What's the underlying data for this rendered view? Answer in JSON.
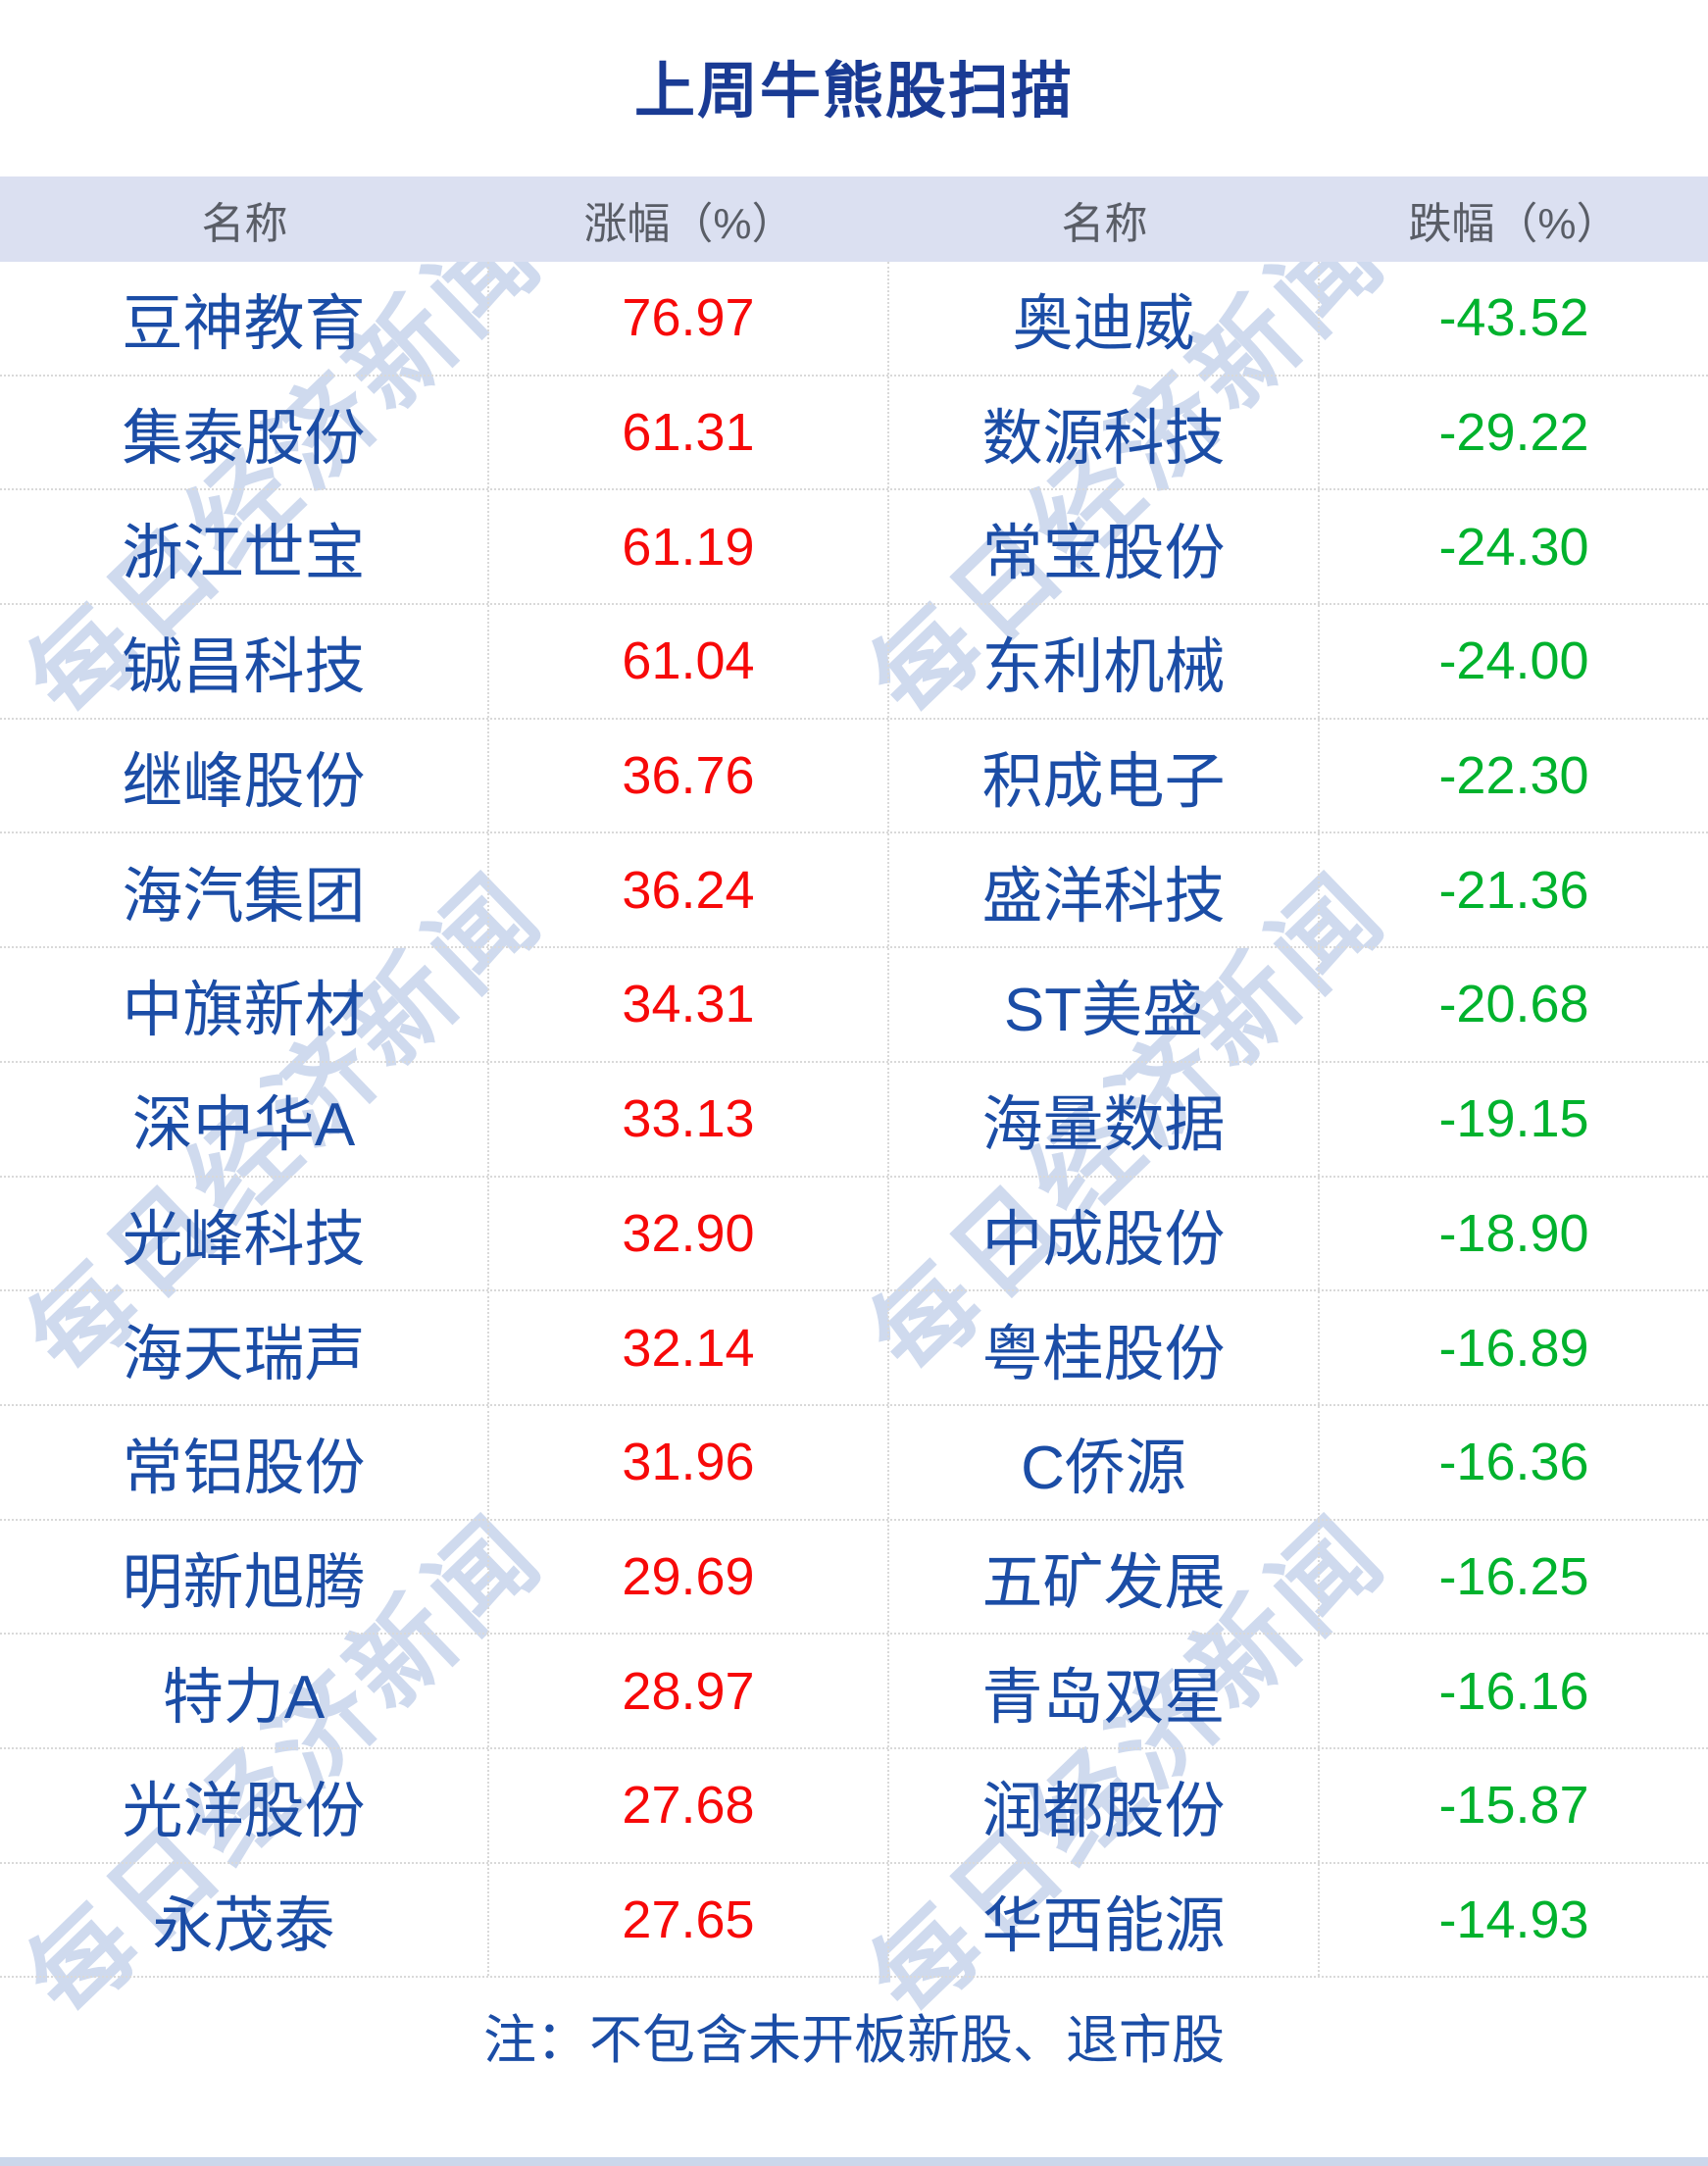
{
  "title": "上周牛熊股扫描",
  "watermark": {
    "text": "每日经济新闻"
  },
  "colors": {
    "title": "#1a3b94",
    "name_text": "#1b4da6",
    "gain": "#f70909",
    "loss": "#00b22d",
    "header_bg": "#dbe0f1",
    "header_text": "#595d66",
    "watermark": "#cfdaee",
    "grid": "#d9d9d9",
    "bottom_bar": "#cbd7eb"
  },
  "chart_data": {
    "type": "table",
    "title": "上周牛熊股扫描",
    "columns": [
      "名称",
      "涨幅（%）",
      "名称",
      "跌幅（%）"
    ],
    "gainers": [
      {
        "name": "豆神教育",
        "change": 76.97
      },
      {
        "name": "集泰股份",
        "change": 61.31
      },
      {
        "name": "浙江世宝",
        "change": 61.19
      },
      {
        "name": "铖昌科技",
        "change": 61.04
      },
      {
        "name": "继峰股份",
        "change": 36.76
      },
      {
        "name": "海汽集团",
        "change": 36.24
      },
      {
        "name": "中旗新材",
        "change": 34.31
      },
      {
        "name": "深中华A",
        "change": 33.13
      },
      {
        "name": "光峰科技",
        "change": 32.9
      },
      {
        "name": "海天瑞声",
        "change": 32.14
      },
      {
        "name": "常铝股份",
        "change": 31.96
      },
      {
        "name": "明新旭腾",
        "change": 29.69
      },
      {
        "name": "特力A",
        "change": 28.97
      },
      {
        "name": "光洋股份",
        "change": 27.68
      },
      {
        "name": "永茂泰",
        "change": 27.65
      }
    ],
    "decliners": [
      {
        "name": "奥迪威",
        "change": -43.52
      },
      {
        "name": "数源科技",
        "change": -29.22
      },
      {
        "name": "常宝股份",
        "change": -24.3
      },
      {
        "name": "东利机械",
        "change": -24.0
      },
      {
        "name": "积成电子",
        "change": -22.3
      },
      {
        "name": "盛洋科技",
        "change": -21.36
      },
      {
        "name": "ST美盛",
        "change": -20.68
      },
      {
        "name": "海量数据",
        "change": -19.15
      },
      {
        "name": "中成股份",
        "change": -18.9
      },
      {
        "name": "粤桂股份",
        "change": -16.89
      },
      {
        "name": "C侨源",
        "change": -16.36
      },
      {
        "name": "五矿发展",
        "change": -16.25
      },
      {
        "name": "青岛双星",
        "change": -16.16
      },
      {
        "name": "润都股份",
        "change": -15.87
      },
      {
        "name": "华西能源",
        "change": -14.93
      }
    ],
    "note": "注：不包含未开板新股、退市股"
  }
}
